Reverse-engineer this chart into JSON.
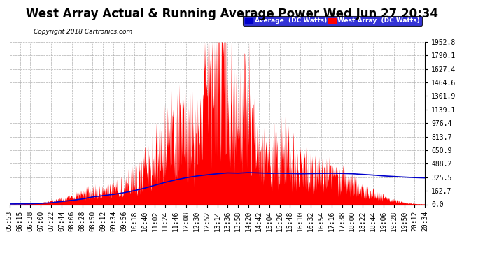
{
  "title": "West Array Actual & Running Average Power Wed Jun 27 20:34",
  "copyright": "Copyright 2018 Cartronics.com",
  "legend_avg": "Average  (DC Watts)",
  "legend_west": "West Array  (DC Watts)",
  "ymax": 1952.8,
  "ymin": 0.0,
  "yticks": [
    0.0,
    162.7,
    325.5,
    488.2,
    650.9,
    813.7,
    976.4,
    1139.1,
    1301.9,
    1464.6,
    1627.4,
    1790.1,
    1952.8
  ],
  "bg_color": "#ffffff",
  "plot_bg": "#ffffff",
  "grid_color": "#b0b0b0",
  "bar_color": "#ff0000",
  "avg_color": "#0000cc",
  "title_fontsize": 12,
  "tick_label_fontsize": 7,
  "xtick_labels": [
    "05:53",
    "06:15",
    "06:38",
    "07:00",
    "07:22",
    "07:44",
    "08:06",
    "08:28",
    "08:50",
    "09:12",
    "09:34",
    "09:56",
    "10:18",
    "10:40",
    "11:02",
    "11:24",
    "11:46",
    "12:08",
    "12:30",
    "12:52",
    "13:14",
    "13:36",
    "13:58",
    "14:20",
    "14:42",
    "15:04",
    "15:26",
    "15:48",
    "16:10",
    "16:32",
    "16:54",
    "17:16",
    "17:38",
    "18:00",
    "18:22",
    "18:44",
    "19:06",
    "19:28",
    "19:50",
    "20:12",
    "20:34"
  ],
  "west_key_values": [
    5,
    8,
    15,
    20,
    50,
    80,
    100,
    150,
    200,
    180,
    220,
    280,
    350,
    500,
    700,
    900,
    1050,
    1100,
    900,
    1952,
    1800,
    1780,
    1100,
    1760,
    800,
    600,
    900,
    700,
    500,
    488,
    450,
    420,
    350,
    300,
    200,
    150,
    100,
    60,
    30,
    10,
    5
  ],
  "avg_key_values": [
    5,
    6,
    8,
    12,
    20,
    35,
    48,
    65,
    90,
    105,
    120,
    140,
    165,
    195,
    230,
    265,
    295,
    320,
    340,
    355,
    368,
    378,
    375,
    382,
    378,
    373,
    375,
    372,
    368,
    370,
    372,
    374,
    372,
    368,
    360,
    352,
    342,
    335,
    328,
    322,
    318
  ]
}
